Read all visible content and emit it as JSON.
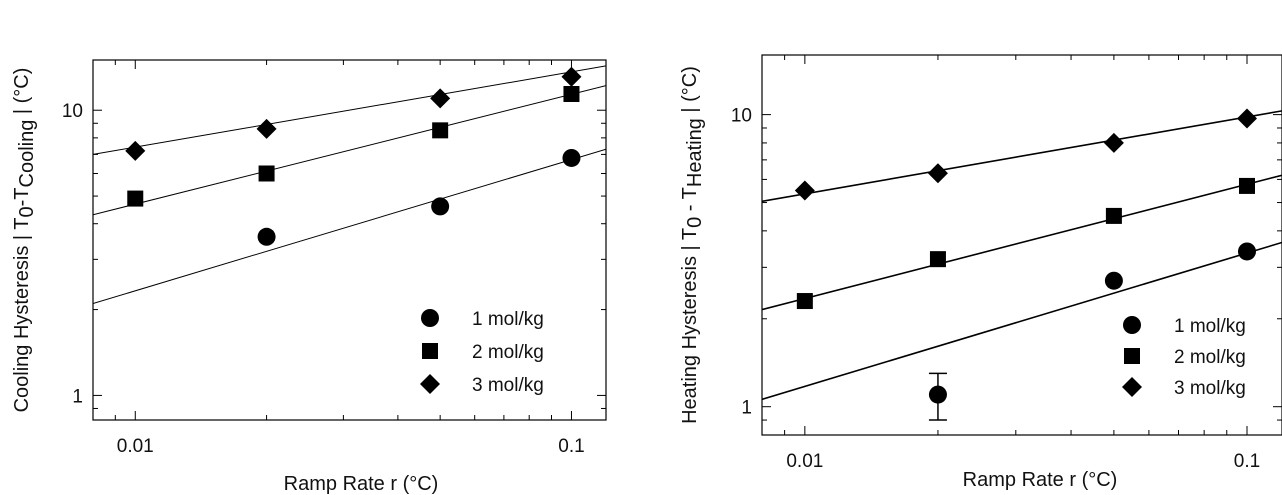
{
  "chart_data": [
    {
      "type": "scatter",
      "x_scale": "log",
      "y_scale": "log",
      "xlim": [
        0.008,
        0.12
      ],
      "ylim": [
        0.82,
        15
      ],
      "xlabel": "Ramp Rate r (°C)",
      "ylabel": {
        "prefix": "Cooling Hysteresis | T",
        "sub0": "0",
        "mid": "-T",
        "sub1": "Cooling",
        "suffix": " | (°C)"
      },
      "x_ticks": [
        {
          "value": 0.01,
          "label": "0.01"
        },
        {
          "value": 0.1,
          "label": "0.1"
        }
      ],
      "y_ticks": [
        {
          "value": 1,
          "label": "1"
        },
        {
          "value": 10,
          "label": "10"
        }
      ],
      "legend_position": "bottom-right",
      "series": [
        {
          "name": "1 mol/kg",
          "marker": "circle",
          "x": [
            0.02,
            0.05,
            0.1
          ],
          "y": [
            3.6,
            4.6,
            6.8
          ],
          "fit": {
            "x": [
              0.008,
              0.12
            ],
            "y": [
              2.1,
              7.3
            ]
          }
        },
        {
          "name": "2 mol/kg",
          "marker": "square",
          "x": [
            0.01,
            0.02,
            0.05,
            0.1
          ],
          "y": [
            4.9,
            6.0,
            8.5,
            11.4
          ],
          "fit": {
            "x": [
              0.008,
              0.12
            ],
            "y": [
              4.3,
              12.2
            ]
          }
        },
        {
          "name": "3 mol/kg",
          "marker": "diamond",
          "x": [
            0.01,
            0.02,
            0.05,
            0.1
          ],
          "y": [
            7.2,
            8.6,
            11.0,
            13.1
          ],
          "fit": {
            "x": [
              0.008,
              0.12
            ],
            "y": [
              7.0,
              14.3
            ]
          }
        }
      ]
    },
    {
      "type": "scatter",
      "x_scale": "log",
      "y_scale": "log",
      "xlim": [
        0.008,
        0.12
      ],
      "ylim": [
        0.8,
        16
      ],
      "xlabel": "Ramp Rate  r (°C)",
      "ylabel": {
        "prefix": "Heating Hysteresis | T",
        "sub0": "0",
        "mid": " - T",
        "sub1": "Heating",
        "suffix": " | (°C)"
      },
      "x_ticks": [
        {
          "value": 0.01,
          "label": "0.01"
        },
        {
          "value": 0.1,
          "label": "0.1"
        }
      ],
      "y_ticks": [
        {
          "value": 1,
          "label": "1"
        },
        {
          "value": 10,
          "label": "10"
        }
      ],
      "legend_position": "bottom-right",
      "series": [
        {
          "name": "1 mol/kg",
          "marker": "circle",
          "x": [
            0.02,
            0.05,
            0.1
          ],
          "y": [
            1.1,
            2.7,
            3.4
          ],
          "error": [
            [
              0.02,
              0.9,
              1.3
            ]
          ],
          "fit": {
            "x": [
              0.008,
              0.12
            ],
            "y": [
              1.06,
              3.65
            ]
          }
        },
        {
          "name": "2 mol/kg",
          "marker": "square",
          "x": [
            0.01,
            0.02,
            0.05,
            0.1
          ],
          "y": [
            2.3,
            3.2,
            4.5,
            5.7
          ],
          "fit": {
            "x": [
              0.008,
              0.12
            ],
            "y": [
              2.15,
              6.2
            ]
          }
        },
        {
          "name": "3 mol/kg",
          "marker": "diamond",
          "x": [
            0.01,
            0.02,
            0.05,
            0.1
          ],
          "y": [
            5.5,
            6.3,
            8.0,
            9.7
          ],
          "fit": {
            "x": [
              0.008,
              0.12
            ],
            "y": [
              5.05,
              10.3
            ]
          }
        }
      ]
    }
  ]
}
